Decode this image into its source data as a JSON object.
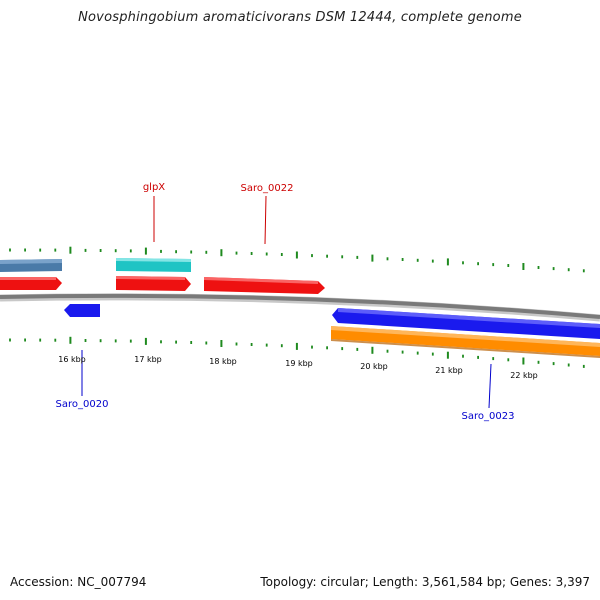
{
  "title": "Novosphingobium aromaticivorans DSM 12444, complete genome",
  "footer": {
    "accession": "Accession: NC_007794",
    "summary": "Topology: circular; Length: 3,561,584 bp; Genes: 3,397"
  },
  "colors": {
    "backbone": "#7a7a7a",
    "tick": "#1f8a1f",
    "forward_label": "#cc0000",
    "reverse_label": "#0000cc",
    "steelblue_gene": "#4a7aa8",
    "cyan_gene": "#1fc4c4",
    "red_gene": "#ee1111",
    "blue_gene": "#1a1aee",
    "orange_gene": "#ff8c00"
  },
  "scale": {
    "unit": "kbp",
    "tick_labels": [
      "16 kbp",
      "17 kbp",
      "18 kbp",
      "19 kbp",
      "20 kbp",
      "21 kbp",
      "22 kbp"
    ]
  },
  "features": [
    {
      "label": "glpX",
      "strand": "forward",
      "color_key": "forward_label"
    },
    {
      "label": "Saro_0022",
      "strand": "forward",
      "color_key": "forward_label"
    },
    {
      "label": "Saro_0020",
      "strand": "reverse",
      "color_key": "reverse_label"
    },
    {
      "label": "Saro_0023",
      "strand": "reverse",
      "color_key": "reverse_label"
    }
  ]
}
